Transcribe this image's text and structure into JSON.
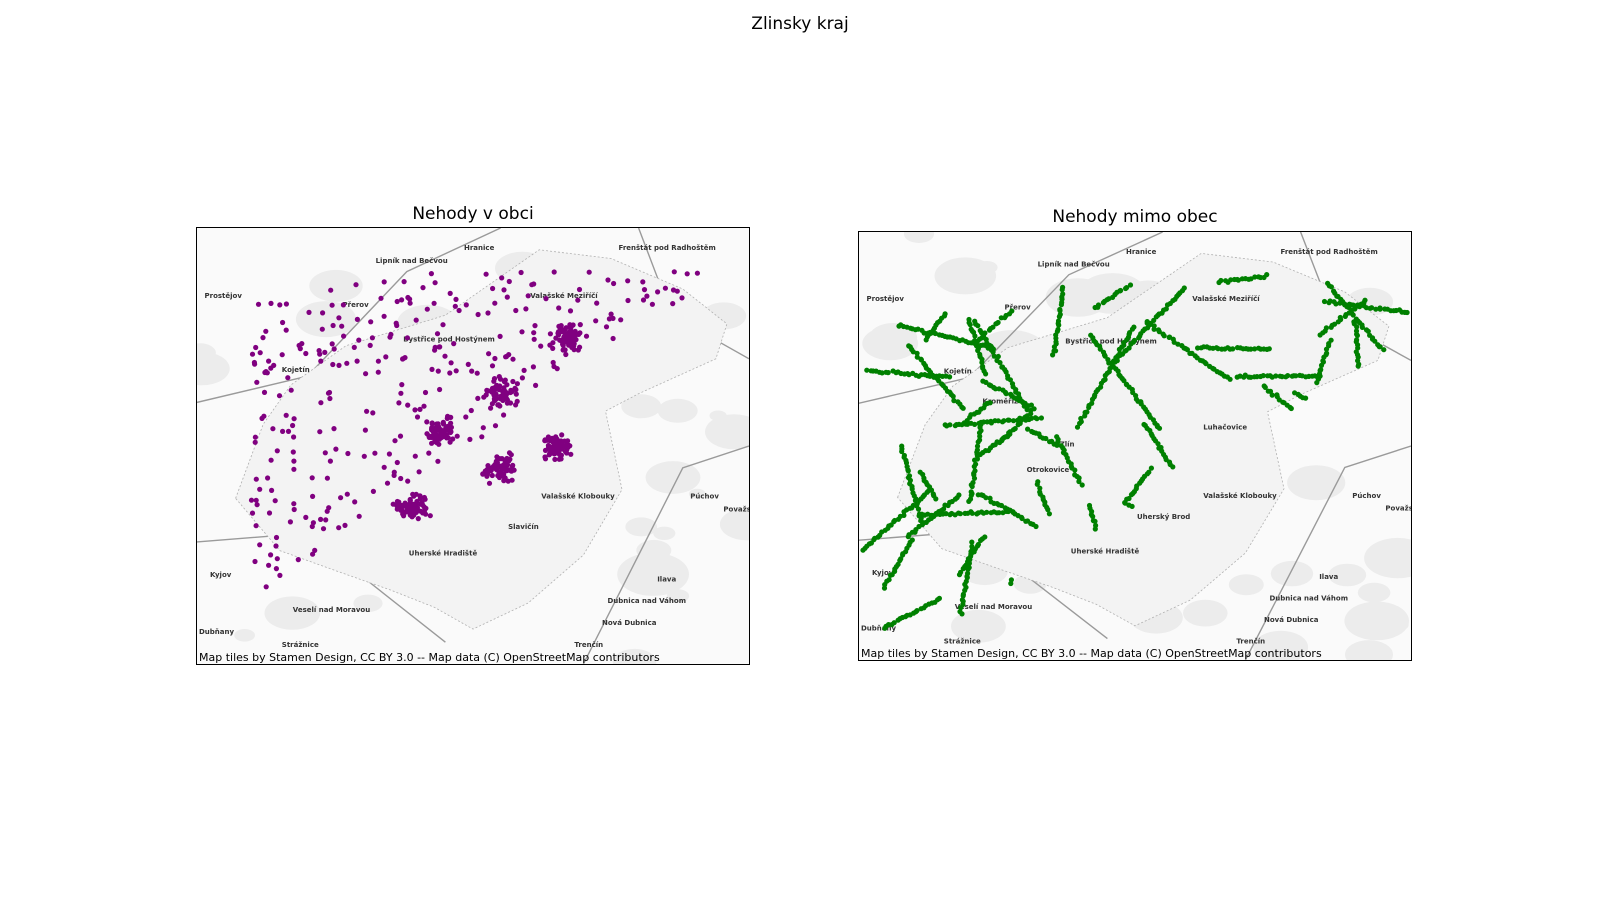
{
  "figure": {
    "title": "Zlinsky kraj"
  },
  "maps": [
    {
      "title": "Nehody v obci",
      "point_color": "#800080",
      "attribution": "Map tiles by Stamen Design, CC BY 3.0 -- Map data (C) OpenStreetMap contributors",
      "towns": [
        "Hranice",
        "Frenštát pod Radhoštěm",
        "Lipník nad Bečvou",
        "Prostějov",
        "Přerov",
        "Bystřice pod Hostýnem",
        "Kojetín",
        "Valašské Klobouky",
        "Púchov",
        "Považská",
        "Kyjov",
        "Veselí nad Moravou",
        "Ilava",
        "Dubnica nad Váhom",
        "Nová Dubnica",
        "Dubňany",
        "Strážnice",
        "Trenčín",
        "Valašské Meziříčí",
        "Uherské Hradiště",
        "Slavičín"
      ]
    },
    {
      "title": "Nehody mimo obec",
      "point_color": "#008000",
      "attribution": "Map tiles by Stamen Design, CC BY 3.0 -- Map data (C) OpenStreetMap contributors",
      "towns": [
        "Hranice",
        "Frenštát pod Radhoštěm",
        "Lipník nad Bečvou",
        "Prostějov",
        "Přerov",
        "Bystřice pod Hostýnem",
        "Kojetín",
        "Valašské Klobouky",
        "Púchov",
        "Považská By",
        "Kyjov",
        "Veselí nad Moravou",
        "Ilava",
        "Dubnica nad Váhom",
        "Nová Dubnica",
        "Dubňany",
        "Strážnice",
        "Trenčín",
        "Valašské Meziříčí",
        "Kroměříž",
        "Zlín",
        "Otrokovice",
        "Uherský Brod",
        "Luhačovice",
        "Uherské Hradiště"
      ]
    }
  ]
}
